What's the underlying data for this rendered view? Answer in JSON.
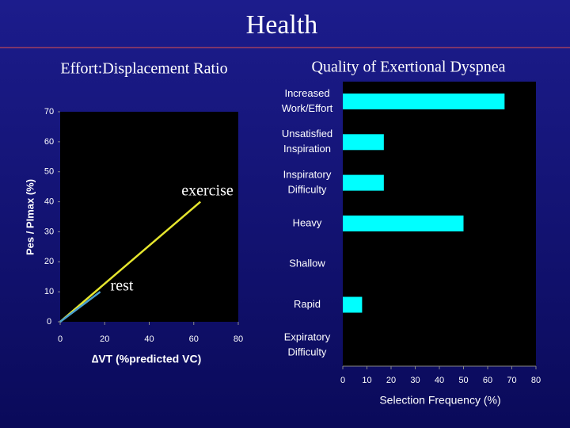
{
  "title": "Health",
  "chart_data": [
    {
      "type": "line",
      "title": "Effort:Displacement Ratio",
      "y_label": "Pes / PImax (%)",
      "x_label": "∆VT (%predicted VC)",
      "series": [
        {
          "color": "#e6e62e",
          "x": [
            0,
            63
          ],
          "values": [
            0,
            40
          ]
        },
        {
          "color": "#4aa0d0",
          "x": [
            0,
            18
          ],
          "values": [
            0,
            10
          ]
        }
      ],
      "annotations": [
        "exercise",
        "rest"
      ],
      "xlim": [
        0,
        80
      ],
      "xticks": [
        0,
        20,
        40,
        60,
        80
      ],
      "ylim": [
        0,
        70
      ],
      "yticks": [
        0,
        10,
        20,
        30,
        40,
        50,
        60,
        70
      ]
    },
    {
      "type": "barh",
      "title": "Quality of Exertional Dyspnea",
      "x_label": "Selection Frequency (%)",
      "categories": [
        [
          "Increased",
          "Work/Effort"
        ],
        [
          "Unsatisfied",
          "Inspiration"
        ],
        [
          "Inspiratory",
          "Difficulty"
        ],
        [
          "Heavy"
        ],
        [
          "Shallow"
        ],
        [
          "Rapid"
        ],
        [
          "Expiratory",
          "Difficulty"
        ]
      ],
      "values": [
        67,
        17,
        17,
        50,
        0,
        8,
        0
      ],
      "color": "#00ffff",
      "xlim": [
        0,
        80
      ],
      "xticks": [
        0,
        10,
        20,
        30,
        40,
        50,
        60,
        70,
        80
      ]
    }
  ]
}
